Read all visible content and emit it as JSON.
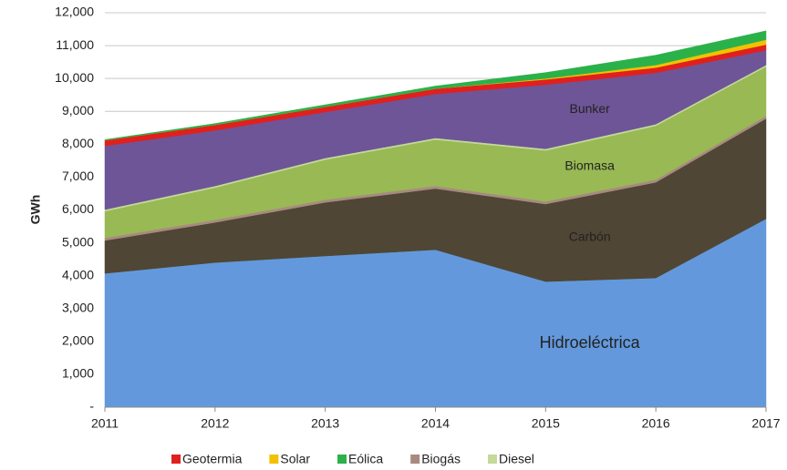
{
  "chart_data": {
    "type": "stacked_area",
    "y_label": "GWh",
    "categories": [
      "2011",
      "2012",
      "2013",
      "2014",
      "2015",
      "2016",
      "2017"
    ],
    "ylim": [
      0,
      12000
    ],
    "yticks": [
      {
        "value": 0,
        "label": "-"
      },
      {
        "value": 1000,
        "label": "1,000"
      },
      {
        "value": 2000,
        "label": "2,000"
      },
      {
        "value": 3000,
        "label": "3,000"
      },
      {
        "value": 4000,
        "label": "4,000"
      },
      {
        "value": 5000,
        "label": "5,000"
      },
      {
        "value": 6000,
        "label": "6,000"
      },
      {
        "value": 7000,
        "label": "7,000"
      },
      {
        "value": 8000,
        "label": "8,000"
      },
      {
        "value": 9000,
        "label": "9,000"
      },
      {
        "value": 10000,
        "label": "10,000"
      },
      {
        "value": 11000,
        "label": "11,000"
      },
      {
        "value": 12000,
        "label": "12,000"
      }
    ],
    "grid": true,
    "legend_order": [
      6,
      7,
      8,
      2,
      4
    ],
    "series": [
      {
        "name": "Hidroeléctrica",
        "color": "#6399dc",
        "label_in_chart": true,
        "values": [
          4070,
          4400,
          4600,
          4790,
          3820,
          3930,
          5730
        ]
      },
      {
        "name": "Carbón",
        "color": "#4f4635",
        "label_in_chart": true,
        "values": [
          1000,
          1220,
          1630,
          1860,
          2360,
          2910,
          3050
        ]
      },
      {
        "name": "Biogás",
        "color": "#a88a80",
        "label_in_chart": false,
        "values": [
          80,
          80,
          80,
          80,
          80,
          80,
          80
        ]
      },
      {
        "name": "Biomasa",
        "color": "#98b954",
        "label_in_chart": true,
        "values": [
          810,
          980,
          1220,
          1410,
          1550,
          1640,
          1500
        ]
      },
      {
        "name": "Diesel",
        "color": "#c4d99a",
        "label_in_chart": false,
        "values": [
          50,
          50,
          50,
          50,
          50,
          50,
          50
        ]
      },
      {
        "name": "Bunker",
        "color": "#6e5597",
        "label_in_chart": true,
        "values": [
          1940,
          1690,
          1400,
          1340,
          1950,
          1560,
          450
        ]
      },
      {
        "name": "Geotermia",
        "color": "#e0201e",
        "label_in_chart": false,
        "values": [
          170,
          170,
          160,
          160,
          160,
          160,
          170
        ]
      },
      {
        "name": "Solar",
        "color": "#f2c200",
        "label_in_chart": false,
        "values": [
          0,
          0,
          0,
          0,
          30,
          80,
          150
        ]
      },
      {
        "name": "Eólica",
        "color": "#2bb14a",
        "label_in_chart": false,
        "values": [
          20,
          40,
          60,
          80,
          180,
          300,
          270
        ]
      }
    ]
  }
}
